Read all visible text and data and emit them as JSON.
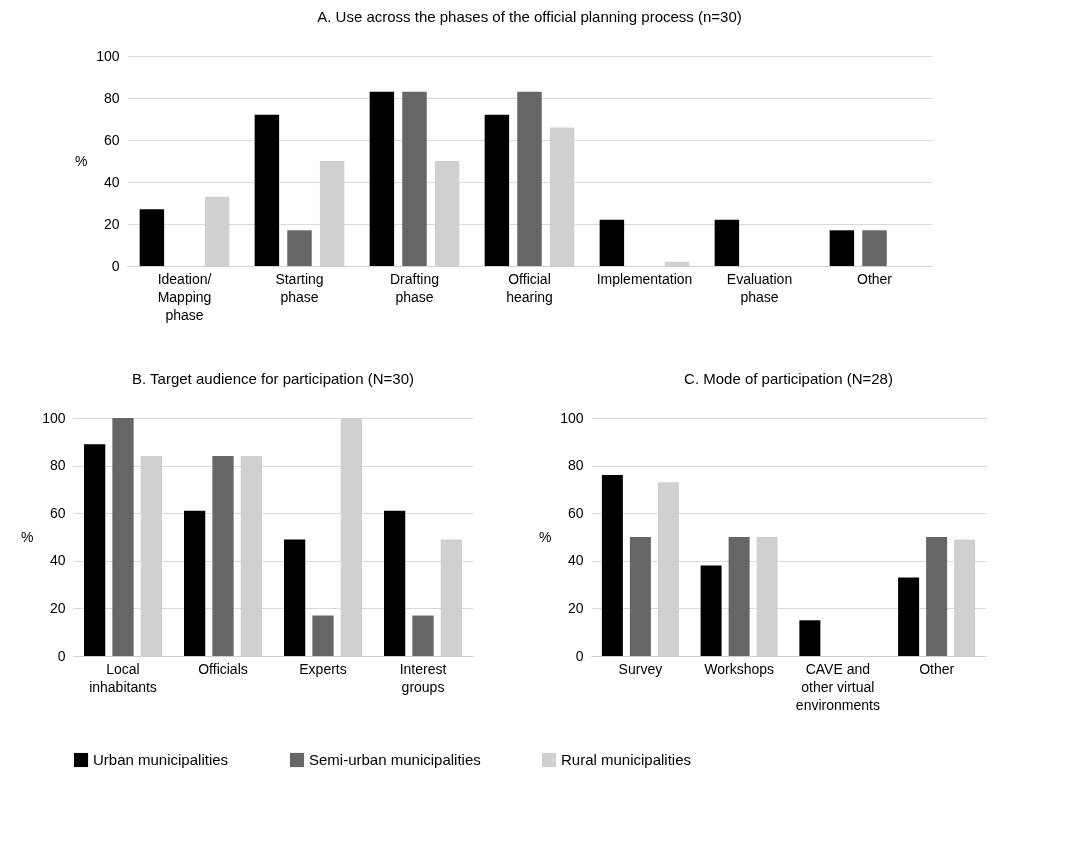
{
  "chart_data": [
    {
      "type": "bar",
      "title": "A. Use across the phases of the official planning process (n=30)",
      "ylabel": "%",
      "categories": [
        "Ideation/ Mapping phase",
        "Starting phase",
        "Drafting phase",
        "Official hearing",
        "Implementation",
        "Evaluation phase",
        "Other"
      ],
      "series": [
        {
          "name": "Urban municipalities",
          "color": "#000000",
          "values": [
            27,
            72,
            83,
            72,
            22,
            22,
            17
          ]
        },
        {
          "name": "Semi-urban municipalities",
          "color": "#666666",
          "values": [
            0,
            17,
            83,
            83,
            0,
            0,
            17
          ]
        },
        {
          "name": "Rural municipalities",
          "color": "#d0d0d0",
          "values": [
            33,
            50,
            50,
            66,
            2,
            0,
            0
          ]
        }
      ],
      "ylim": [
        0,
        100
      ],
      "yticks": [
        0,
        20,
        40,
        60,
        80,
        100
      ],
      "grid": "y",
      "legend": "bottom"
    },
    {
      "type": "bar",
      "title": "B. Target audience for participation (N=30)",
      "ylabel": "%",
      "categories": [
        "Local inhabitants",
        "Officials",
        "Experts",
        "Interest groups"
      ],
      "series": [
        {
          "name": "Urban municipalities",
          "color": "#000000",
          "values": [
            89,
            61,
            49,
            61
          ]
        },
        {
          "name": "Semi-urban municipalities",
          "color": "#666666",
          "values": [
            100,
            84,
            17,
            17
          ]
        },
        {
          "name": "Rural municipalities",
          "color": "#d0d0d0",
          "values": [
            84,
            84,
            100,
            49
          ]
        }
      ],
      "ylim": [
        0,
        100
      ],
      "yticks": [
        0,
        20,
        40,
        60,
        80,
        100
      ],
      "grid": "y",
      "legend": "bottom"
    },
    {
      "type": "bar",
      "title": "C. Mode of participation (N=28)",
      "ylabel": "%",
      "categories": [
        "Survey",
        "Workshops",
        "CAVE and other virtual environments",
        "Other"
      ],
      "series": [
        {
          "name": "Urban municipalities",
          "color": "#000000",
          "values": [
            76,
            38,
            15,
            33
          ]
        },
        {
          "name": "Semi-urban municipalities",
          "color": "#666666",
          "values": [
            50,
            50,
            0,
            50
          ]
        },
        {
          "name": "Rural municipalities",
          "color": "#d0d0d0",
          "values": [
            73,
            50,
            0,
            49
          ]
        }
      ],
      "ylim": [
        0,
        100
      ],
      "yticks": [
        0,
        20,
        40,
        60,
        80,
        100
      ],
      "grid": "y",
      "legend": "bottom"
    }
  ]
}
